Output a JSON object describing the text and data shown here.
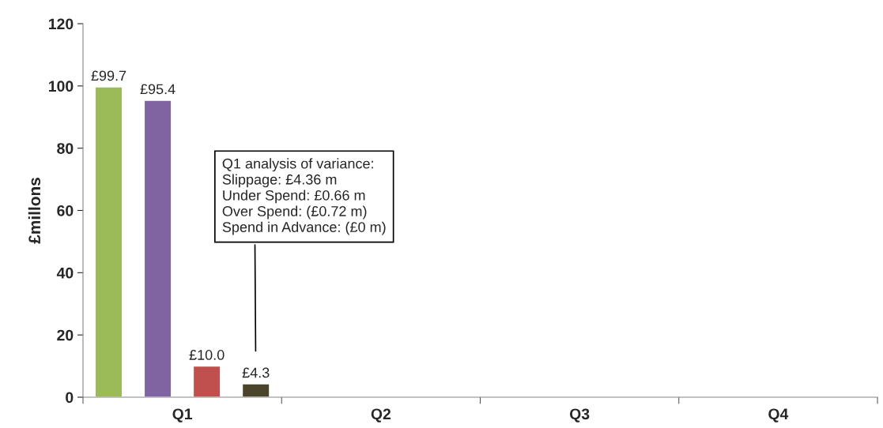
{
  "chart_data": {
    "type": "bar",
    "ylabel": "£millons",
    "categories": [
      "Q1",
      "Q2",
      "Q3",
      "Q4"
    ],
    "series": [
      {
        "color": "#9bbb59",
        "values": [
          99.7,
          null,
          null,
          null
        ],
        "value_labels": [
          "£99.7",
          null,
          null,
          null
        ]
      },
      {
        "color": "#8064a2",
        "values": [
          95.4,
          null,
          null,
          null
        ],
        "value_labels": [
          "£95.4",
          null,
          null,
          null
        ]
      },
      {
        "color": "#c0504d",
        "values": [
          10.0,
          null,
          null,
          null
        ],
        "value_labels": [
          "£10.0",
          null,
          null,
          null
        ]
      },
      {
        "color": "#4a452a",
        "values": [
          4.3,
          null,
          null,
          null
        ],
        "value_labels": [
          "£4.3",
          null,
          null,
          null
        ]
      }
    ],
    "ylim": [
      0,
      120
    ],
    "yticks": [
      0,
      20,
      40,
      60,
      80,
      100,
      120
    ],
    "grid": false,
    "legend": false,
    "annotations": [
      "Q1 analysis of variance:\nSlippage: £4.36 m\nUnder Spend: £0.66 m\nOver Spend: (£0.72 m)\nSpend in Advance: (£0 m)"
    ]
  }
}
